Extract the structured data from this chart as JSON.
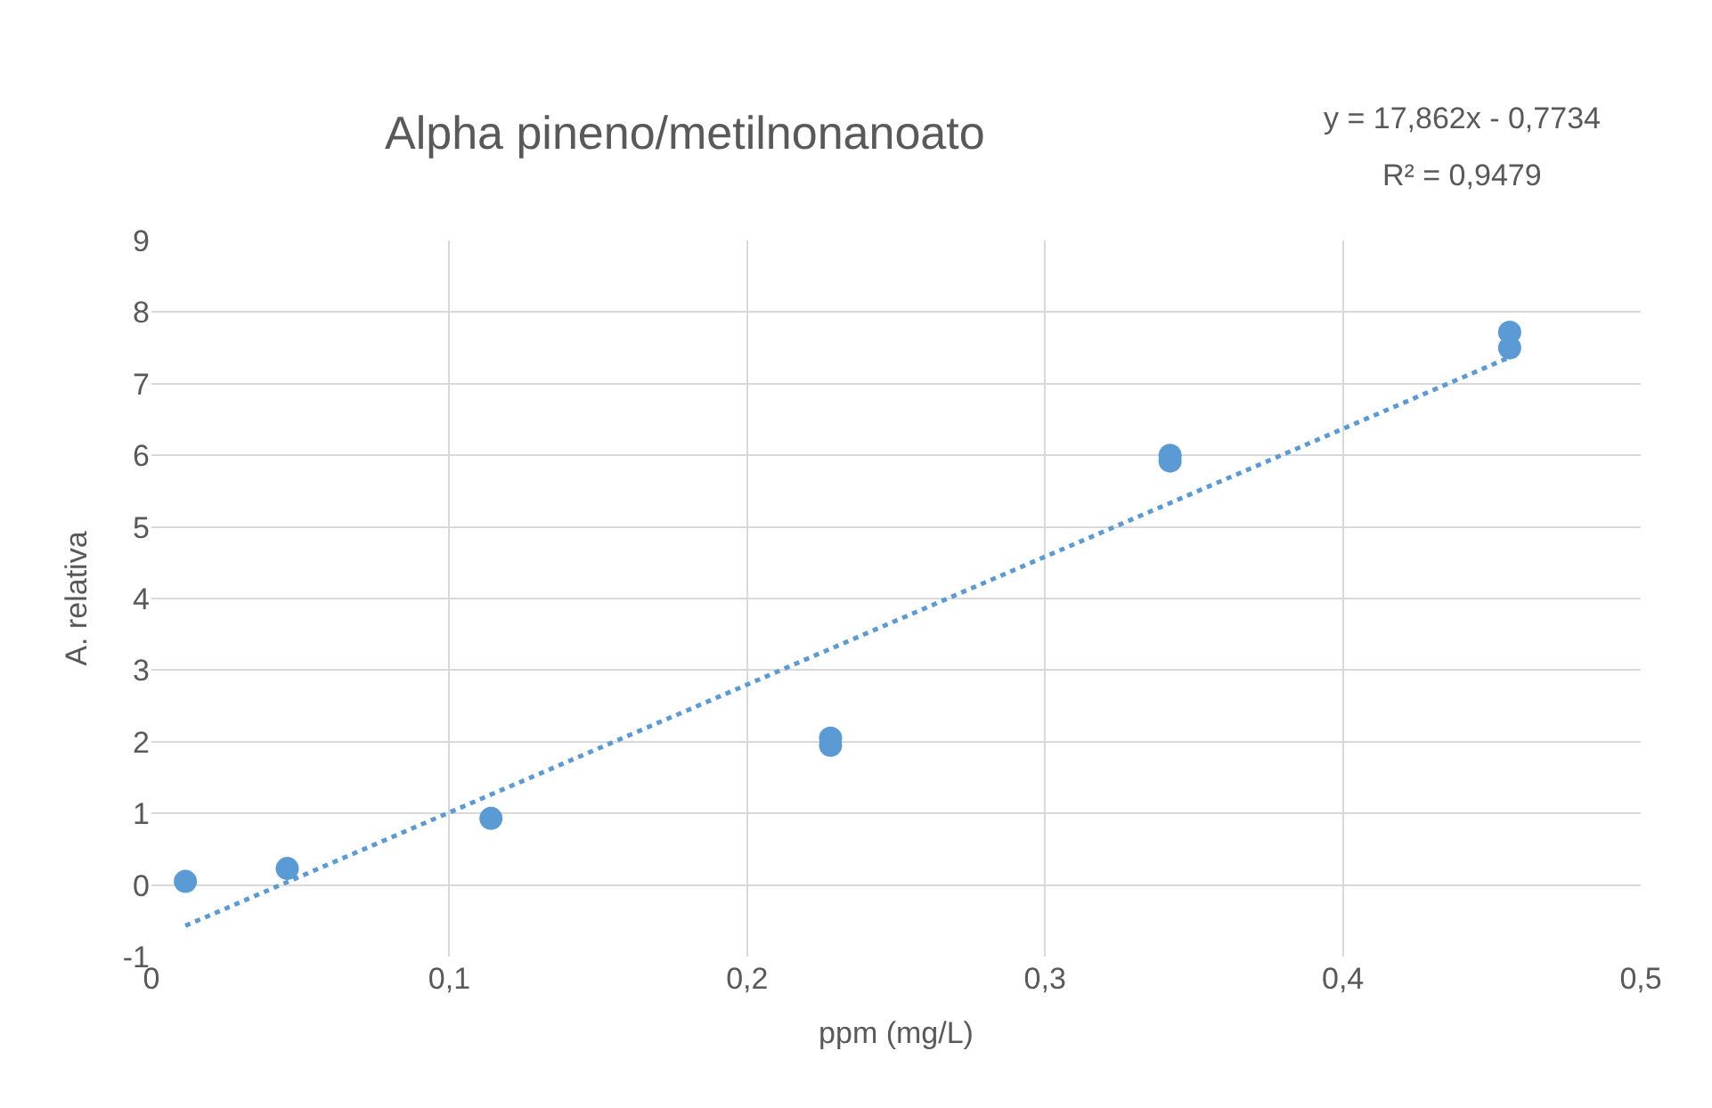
{
  "chart_data": {
    "type": "scatter",
    "title": "Alpha pineno/metilnonanoato",
    "xlabel": "ppm (mg/L)",
    "ylabel": "A. relativa",
    "series": [
      {
        "color": "#5b9bd5",
        "marker": "circle",
        "x": [
          0.0114,
          0.0456,
          0.114,
          0.228,
          0.228,
          0.342,
          0.342,
          0.456,
          0.456
        ],
        "values": [
          0.05,
          0.23,
          0.93,
          2.05,
          1.95,
          6.0,
          5.92,
          7.72,
          7.5
        ]
      },
      {
        "type": "line",
        "color": "#5b9bd5",
        "line_style": "dotted",
        "marker": "none",
        "x": [
          0.0114,
          0.456
        ],
        "values": [
          -0.57,
          7.37
        ]
      }
    ],
    "annotations": [
      "y = 17,862x - 0,7734",
      "R² = 0,9479"
    ],
    "xlim": [
      0,
      0.5
    ],
    "xticks": [
      0,
      {
        "value": 0.1,
        "label": "0,1"
      },
      {
        "value": 0.2,
        "label": "0,2"
      },
      {
        "value": 0.3,
        "label": "0,3"
      },
      {
        "value": 0.4,
        "label": "0,4"
      },
      {
        "value": 0.5,
        "label": "0,5"
      }
    ],
    "ylim": [
      -1,
      9
    ],
    "yticks": [
      -1,
      0,
      1,
      2,
      3,
      4,
      5,
      6,
      7,
      8,
      9
    ],
    "grid": true
  }
}
